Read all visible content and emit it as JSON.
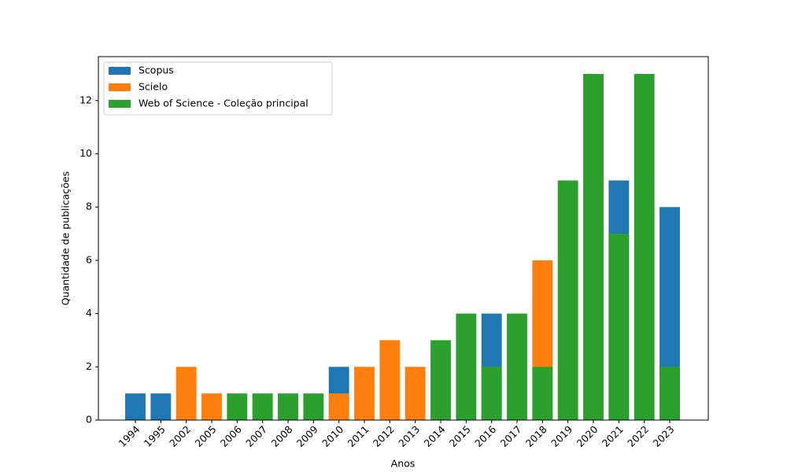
{
  "chart_data": {
    "type": "bar",
    "barmode": "overlay",
    "x_label": "Anos",
    "y_label": "Quantidade de publicações",
    "categories": [
      "1994",
      "1995",
      "2002",
      "2005",
      "2006",
      "2007",
      "2008",
      "2009",
      "2010",
      "2011",
      "2012",
      "2013",
      "2014",
      "2015",
      "2016",
      "2017",
      "2018",
      "2019",
      "2020",
      "2021",
      "2022",
      "2023"
    ],
    "series": [
      {
        "name": "Scopus",
        "color": "#1f77b4",
        "values": [
          1,
          1,
          null,
          null,
          null,
          null,
          null,
          null,
          2,
          null,
          null,
          null,
          null,
          null,
          4,
          null,
          null,
          null,
          null,
          9,
          null,
          8
        ]
      },
      {
        "name": "Scielo",
        "color": "#ff7f0e",
        "values": [
          null,
          null,
          2,
          1,
          null,
          null,
          null,
          null,
          1,
          2,
          3,
          2,
          null,
          null,
          null,
          null,
          6,
          null,
          null,
          null,
          null,
          null
        ]
      },
      {
        "name": "Web of Science - Coleção principal",
        "color": "#2ca02c",
        "values": [
          null,
          null,
          null,
          null,
          1,
          1,
          1,
          1,
          null,
          null,
          null,
          null,
          3,
          4,
          2,
          4,
          2,
          9,
          13,
          7,
          13,
          2
        ]
      }
    ],
    "ylim": [
      0,
      13.65
    ],
    "yticks": [
      0,
      2,
      4,
      6,
      8,
      10,
      12
    ],
    "legend": "upper left"
  }
}
